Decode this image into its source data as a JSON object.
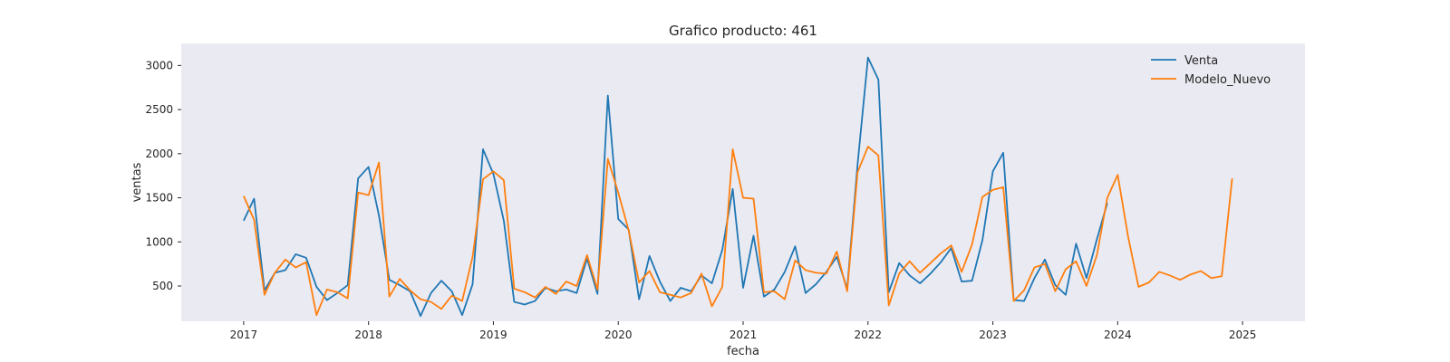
{
  "chart_data": {
    "type": "line",
    "title": "Grafico producto: 461",
    "xlabel": "fecha",
    "ylabel": "ventas",
    "x_start": "2017-01",
    "x_frequency": "monthly",
    "x_ticks": [
      "2017",
      "2018",
      "2019",
      "2020",
      "2021",
      "2022",
      "2023",
      "2024",
      "2025"
    ],
    "y_ticks": [
      500,
      1000,
      1500,
      2000,
      2500,
      3000
    ],
    "ylim": [
      100,
      3250
    ],
    "xlim": [
      "2016-07",
      "2025-07"
    ],
    "grid": false,
    "legend_position": "top-right",
    "background": "#eaeaf2",
    "series": [
      {
        "name": "Venta",
        "color": "#1f77b4",
        "values": [
          1240,
          1490,
          450,
          650,
          680,
          860,
          820,
          490,
          340,
          420,
          510,
          1720,
          1850,
          1300,
          570,
          510,
          440,
          160,
          420,
          560,
          440,
          170,
          520,
          2050,
          1770,
          1240,
          320,
          290,
          330,
          480,
          440,
          460,
          420,
          810,
          410,
          2660,
          1260,
          1140,
          350,
          840,
          550,
          330,
          480,
          440,
          620,
          530,
          910,
          1600,
          480,
          1070,
          380,
          460,
          660,
          950,
          420,
          520,
          660,
          830,
          470,
          1880,
          3090,
          2840,
          430,
          760,
          620,
          530,
          640,
          770,
          930,
          550,
          560,
          1020,
          1800,
          2010,
          340,
          330,
          590,
          800,
          510,
          400,
          980,
          590,
          1030,
          1440
        ]
      },
      {
        "name": "Modelo_Nuevo",
        "color": "#ff7f0e",
        "values": [
          1520,
          1250,
          400,
          650,
          800,
          710,
          770,
          170,
          460,
          430,
          360,
          1560,
          1530,
          1900,
          380,
          580,
          450,
          350,
          320,
          240,
          390,
          330,
          830,
          1710,
          1800,
          1700,
          470,
          430,
          370,
          490,
          410,
          550,
          500,
          850,
          460,
          1940,
          1560,
          1130,
          540,
          670,
          430,
          400,
          370,
          420,
          640,
          270,
          490,
          2050,
          1500,
          1490,
          430,
          440,
          350,
          790,
          680,
          650,
          640,
          890,
          440,
          1790,
          2080,
          1980,
          280,
          640,
          780,
          650,
          760,
          870,
          960,
          660,
          970,
          1510,
          1590,
          1620,
          330,
          450,
          710,
          750,
          440,
          690,
          780,
          500,
          850,
          1500,
          1760,
          1060,
          490,
          540,
          660,
          620,
          570,
          630,
          670,
          590,
          610,
          1720
        ]
      }
    ]
  }
}
